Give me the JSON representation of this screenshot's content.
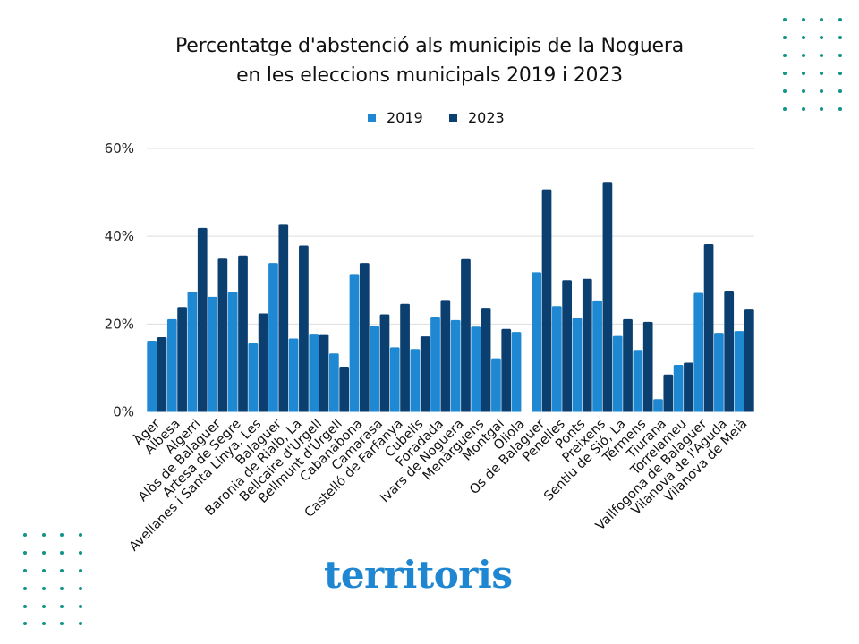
{
  "title_lines": [
    "Percentatge d'abstenció als municipis de la Noguera",
    "en les eleccions municipals 2019 i 2023"
  ],
  "logo_text": "territoris",
  "colors": {
    "series_2019": "#1e88d2",
    "series_2023": "#0b3f70",
    "dots": "#0f9488",
    "logo": "#1f86d1",
    "grid": "#dddddd"
  },
  "chart_data": {
    "type": "bar",
    "title": "Percentatge d'abstenció als municipis de la Noguera en les eleccions municipals 2019 i 2023",
    "xlabel": "",
    "ylabel": "",
    "ylim": [
      0,
      60
    ],
    "yticks": [
      0,
      20,
      40,
      60
    ],
    "ytick_labels": [
      "0%",
      "20%",
      "40%",
      "60%"
    ],
    "grid": true,
    "legend_position": "top-center",
    "categories": [
      "Àger",
      "Albesa",
      "Algerri",
      "Alòs de Balaguer",
      "Artesa de Segre",
      "Avellanes i Santa Linya, Les",
      "Balaguer",
      "Baronia de Rialb, La",
      "Bellcaire d'Urgell",
      "Bellmunt d'Urgell",
      "Cabanabona",
      "Camarasa",
      "Castelló de Farfanya",
      "Cubells",
      "Foradada",
      "Ivars de Noguera",
      "Menàrguens",
      "Montgai",
      "Oliola",
      "Os de Balaguer",
      "Penelles",
      "Ponts",
      "Preixens",
      "Sentiu de Sió, La",
      "Térmens",
      "Tiurana",
      "Torrelameu",
      "Vallfogona de Balaguer",
      "Vilanova de l'Aguda",
      "Vilanova de Meià"
    ],
    "series": [
      {
        "name": "2019",
        "values": [
          16.2,
          21.1,
          27.4,
          26.2,
          27.3,
          15.6,
          33.9,
          16.7,
          17.8,
          13.3,
          31.4,
          19.5,
          14.7,
          14.3,
          21.7,
          20.9,
          19.4,
          12.2,
          18.2,
          31.8,
          24.1,
          21.4,
          25.4,
          17.3,
          14.1,
          2.9,
          10.7,
          27.1,
          18.0,
          18.4
        ]
      },
      {
        "name": "2023",
        "values": [
          17.0,
          23.9,
          41.9,
          34.9,
          35.6,
          22.4,
          42.8,
          37.9,
          17.7,
          10.3,
          33.9,
          22.2,
          24.6,
          17.2,
          25.5,
          34.8,
          23.7,
          18.9,
          null,
          50.7,
          30.0,
          30.3,
          52.2,
          21.1,
          20.5,
          8.5,
          11.2,
          38.2,
          27.6,
          23.3
        ]
      }
    ]
  }
}
